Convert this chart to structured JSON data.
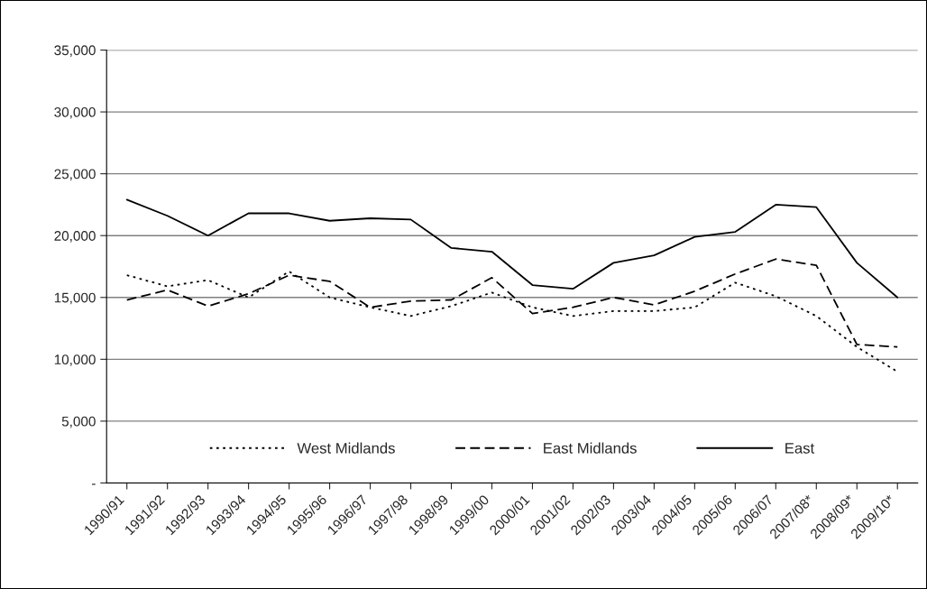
{
  "chart_data": {
    "type": "line",
    "categories": [
      "1990/91",
      "1991/92",
      "1992/93",
      "1993/94",
      "1994/95",
      "1995/96",
      "1996/97",
      "1997/98",
      "1998/99",
      "1999/00",
      "2000/01",
      "2001/02",
      "2002/03",
      "2003/04",
      "2004/05",
      "2005/06",
      "2006/07",
      "2007/08*",
      "2008/09*",
      "2009/10*"
    ],
    "series": [
      {
        "name": "West Midlands",
        "color": "#000000",
        "line_style": "dotted",
        "values": [
          16800,
          15900,
          16400,
          15000,
          17100,
          15000,
          14200,
          13500,
          14300,
          15400,
          14200,
          13500,
          13900,
          13900,
          14200,
          16200,
          15100,
          13500,
          11000,
          9000
        ]
      },
      {
        "name": "East Midlands",
        "color": "#000000",
        "line_style": "dashed",
        "values": [
          14800,
          15600,
          14300,
          15300,
          16800,
          16300,
          14200,
          14700,
          14800,
          16600,
          13700,
          14200,
          15000,
          14400,
          15500,
          16900,
          18100,
          17600,
          11200,
          11000
        ]
      },
      {
        "name": "East",
        "color": "#000000",
        "line_style": "solid",
        "values": [
          22900,
          21600,
          20000,
          21800,
          21800,
          21200,
          21400,
          21300,
          19000,
          18700,
          16000,
          15700,
          17800,
          18400,
          19900,
          20300,
          22500,
          22300,
          17800,
          15000
        ]
      }
    ],
    "ylim": [
      0,
      35000
    ],
    "yticks": [
      {
        "value": 0,
        "label": "-"
      },
      {
        "value": 5000,
        "label": "5,000"
      },
      {
        "value": 10000,
        "label": "10,000"
      },
      {
        "value": 15000,
        "label": "15,000"
      },
      {
        "value": 20000,
        "label": "20,000"
      },
      {
        "value": 25000,
        "label": "25,000"
      },
      {
        "value": 30000,
        "label": "30,000"
      },
      {
        "value": 35000,
        "label": "35,000"
      }
    ],
    "grid": "y",
    "legend": "bottom",
    "marker": "none"
  }
}
